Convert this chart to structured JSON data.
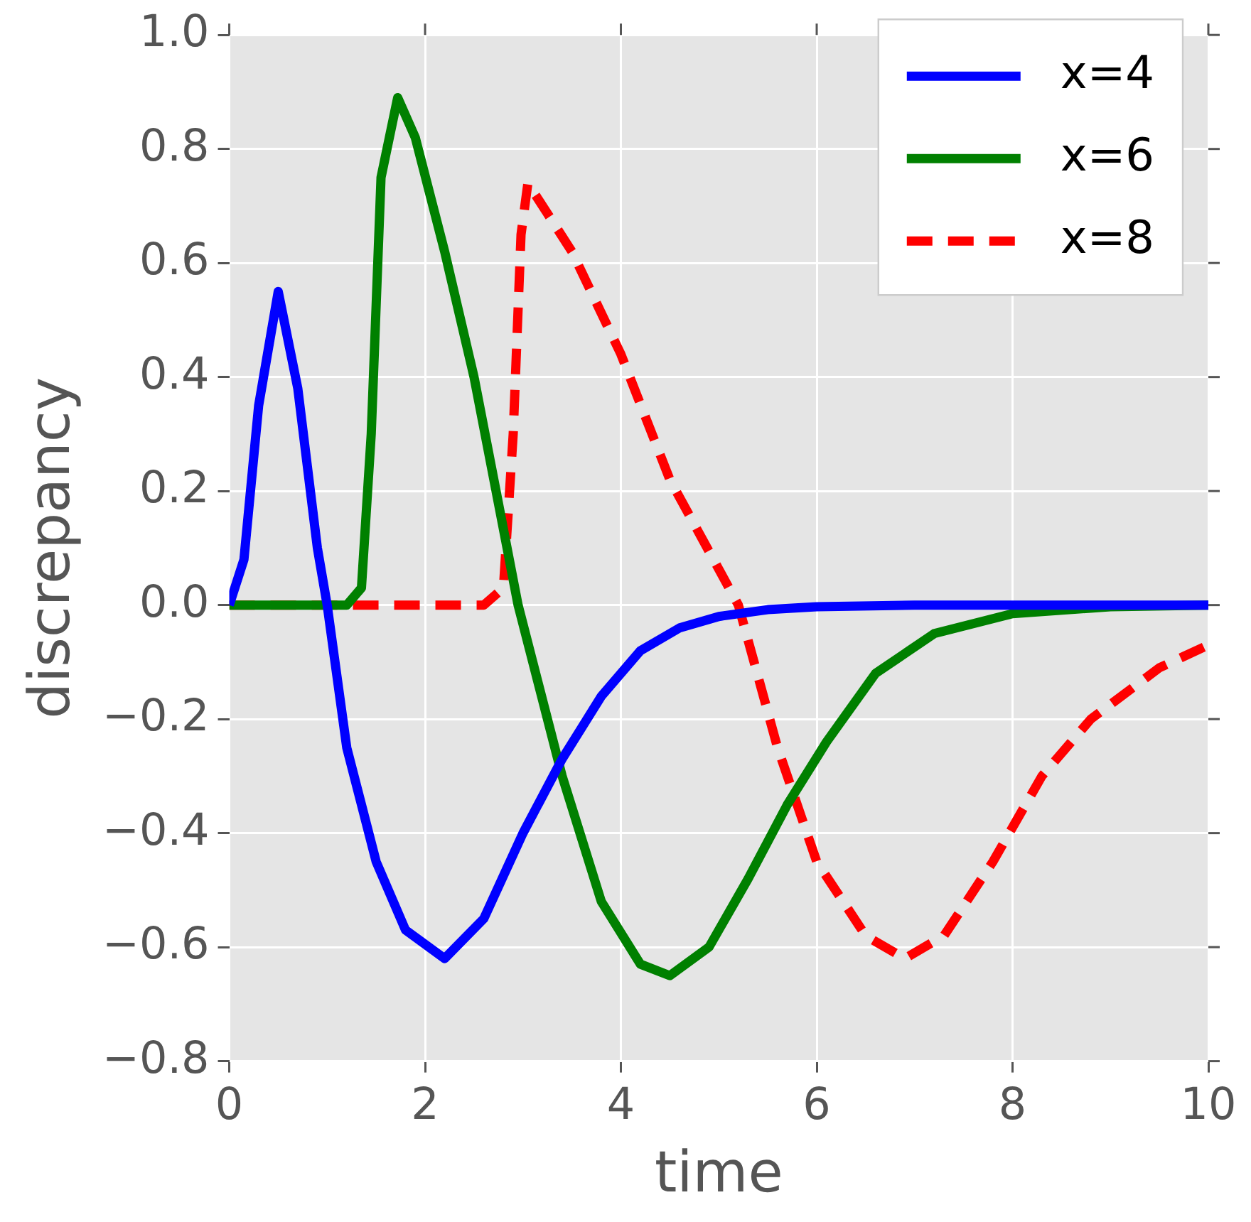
{
  "chart_data": {
    "type": "line",
    "xlabel": "time",
    "ylabel": "discrepancy",
    "xlim": [
      0,
      10
    ],
    "xticks": [
      0,
      2,
      4,
      6,
      8,
      10
    ],
    "ylim": [
      -0.8,
      1.0
    ],
    "yticks": [
      {
        "value": -0.8,
        "label": "−0.8"
      },
      {
        "value": -0.6,
        "label": "−0.6"
      },
      {
        "value": -0.4,
        "label": "−0.4"
      },
      {
        "value": -0.2,
        "label": "−0.2"
      },
      {
        "value": 0,
        "label": "0.0"
      },
      {
        "value": 0.2,
        "label": "0.2"
      },
      {
        "value": 0.4,
        "label": "0.4"
      },
      {
        "value": 0.6,
        "label": "0.6"
      },
      {
        "value": 0.8,
        "label": "0.8"
      },
      {
        "value": 1.0,
        "label": "1.0"
      }
    ],
    "grid": true,
    "legend": "top right",
    "marker": "none",
    "series": [
      {
        "name": "x=4",
        "color": "#0000ff",
        "line_style": "solid",
        "x": [
          0,
          0.15,
          0.3,
          0.5,
          0.7,
          0.9,
          1.0,
          1.2,
          1.5,
          1.8,
          2.2,
          2.6,
          3.0,
          3.4,
          3.8,
          4.2,
          4.6,
          5.0,
          5.5,
          6,
          7,
          10
        ],
        "values": [
          0,
          0.08,
          0.35,
          0.55,
          0.38,
          0.1,
          0,
          -0.25,
          -0.45,
          -0.57,
          -0.62,
          -0.55,
          -0.4,
          -0.27,
          -0.16,
          -0.08,
          -0.04,
          -0.02,
          -0.008,
          -0.003,
          0,
          0
        ]
      },
      {
        "name": "x=6",
        "color": "#008000",
        "line_style": "solid",
        "x": [
          0,
          1.2,
          1.35,
          1.45,
          1.55,
          1.72,
          1.9,
          2.2,
          2.5,
          2.95,
          3.4,
          3.8,
          4.2,
          4.5,
          4.9,
          5.3,
          5.7,
          6.1,
          6.6,
          7.2,
          8,
          9,
          10
        ],
        "values": [
          0,
          0,
          0.03,
          0.3,
          0.75,
          0.89,
          0.82,
          0.62,
          0.4,
          0,
          -0.3,
          -0.52,
          -0.63,
          -0.65,
          -0.6,
          -0.48,
          -0.35,
          -0.24,
          -0.12,
          -0.05,
          -0.015,
          -0.003,
          0
        ]
      },
      {
        "name": "x=8",
        "color": "#ff0000",
        "line_style": "dashed",
        "x": [
          0,
          2.6,
          2.8,
          2.9,
          2.98,
          3.05,
          3.5,
          4,
          4.5,
          5.2,
          5.6,
          6,
          6.5,
          6.9,
          7.3,
          7.8,
          8.3,
          8.8,
          9.5,
          10
        ],
        "values": [
          0,
          0,
          0.03,
          0.3,
          0.65,
          0.74,
          0.62,
          0.44,
          0.22,
          0,
          -0.25,
          -0.45,
          -0.58,
          -0.62,
          -0.58,
          -0.45,
          -0.3,
          -0.2,
          -0.11,
          -0.07
        ]
      }
    ]
  }
}
